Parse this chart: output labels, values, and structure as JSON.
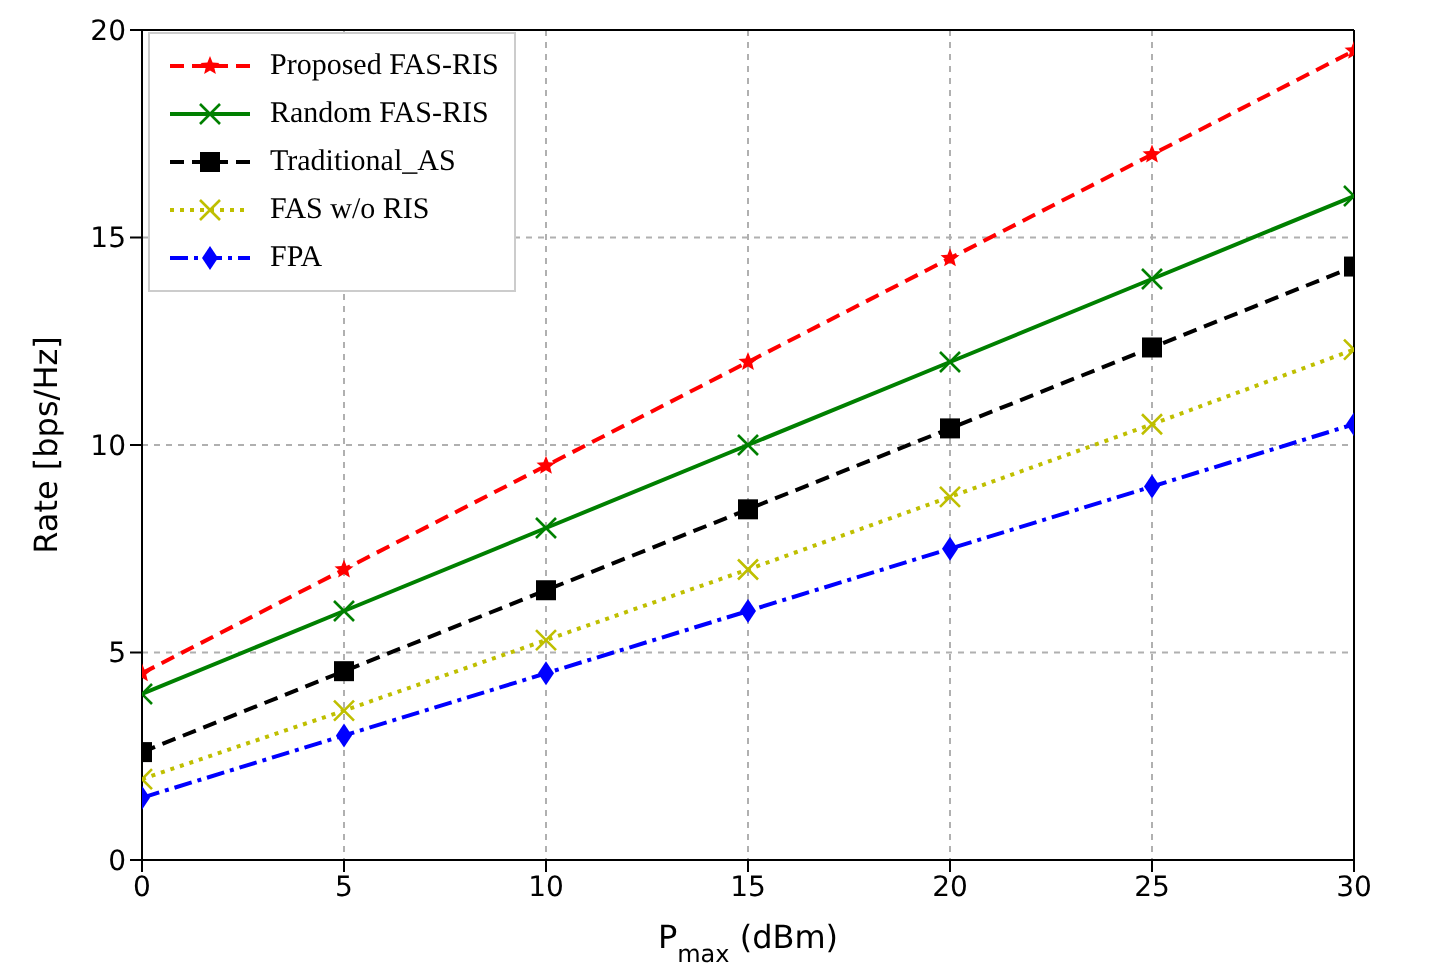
{
  "chart_data": {
    "type": "line",
    "xlabel": "P$_{max}$ (dBm)",
    "ylabel": "Rate [bps/Hz]",
    "x": [
      0,
      5,
      10,
      15,
      20,
      25,
      30
    ],
    "series": [
      {
        "name": "Proposed FAS-RIS",
        "color": "#ff0000",
        "marker": "star",
        "line_style": "dashed",
        "values": [
          4.5,
          7,
          9.5,
          12,
          14.5,
          17,
          19.5
        ]
      },
      {
        "name": "Random FAS-RIS",
        "color": "#008000",
        "marker": "cross",
        "line_style": "solid",
        "values": [
          4,
          6,
          8,
          10,
          12,
          14,
          16
        ]
      },
      {
        "name": "Traditional_AS",
        "color": "#000000",
        "marker": "square",
        "line_style": "dashed",
        "values": [
          2.6,
          4.55,
          6.5,
          8.45,
          10.4,
          12.35,
          14.3
        ]
      },
      {
        "name": "FAS w/o RIS",
        "color": "#bfbf00",
        "marker": "cross",
        "line_style": "dotted",
        "values": [
          1.95,
          3.6,
          5.3,
          7,
          8.75,
          10.5,
          12.3
        ]
      },
      {
        "name": "FPA",
        "color": "#0000ff",
        "marker": "diamond",
        "line_style": "dashdot",
        "values": [
          1.5,
          3,
          4.5,
          6,
          7.5,
          9,
          10.5
        ]
      }
    ],
    "xlim": [
      0,
      30
    ],
    "xticks": [
      0,
      5,
      10,
      15,
      20,
      25,
      30
    ],
    "ylim": [
      0,
      20
    ],
    "yticks": [
      0,
      5,
      10,
      15,
      20
    ],
    "grid": true,
    "legend": "top left"
  }
}
